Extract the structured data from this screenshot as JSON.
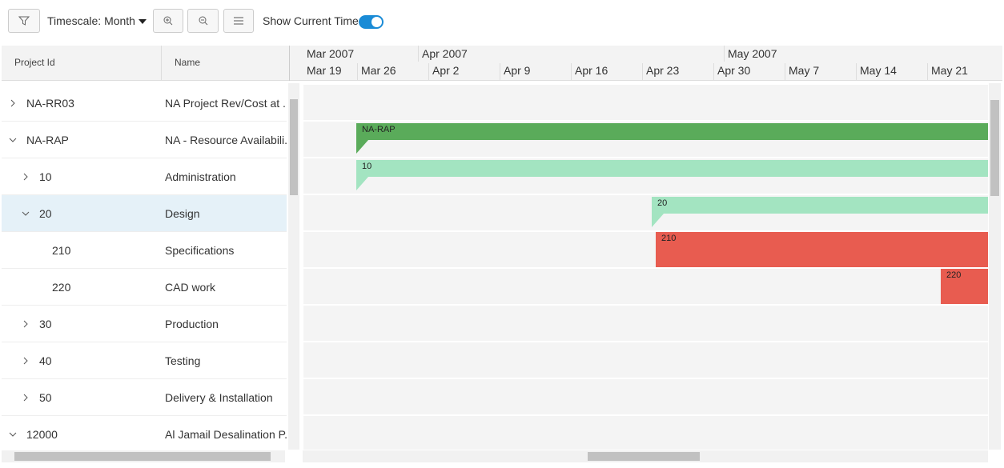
{
  "toolbar": {
    "timescale_label": "Timescale:",
    "timescale_value": "Month",
    "show_current_time": "Show Current Time"
  },
  "grid": {
    "headers": [
      "Project Id",
      "Name"
    ],
    "rows": [
      {
        "id": "NA-RR03",
        "name": "NA Project Rev/Cost at ..."
      },
      {
        "id": "NA-RAP",
        "name": "NA - Resource Availabili..."
      },
      {
        "id": "10",
        "name": "Administration"
      },
      {
        "id": "20",
        "name": "Design"
      },
      {
        "id": "210",
        "name": "Specifications"
      },
      {
        "id": "220",
        "name": "CAD work"
      },
      {
        "id": "30",
        "name": "Production"
      },
      {
        "id": "40",
        "name": "Testing"
      },
      {
        "id": "50",
        "name": "Delivery & Installation"
      },
      {
        "id": "12000",
        "name": "Al Jamail Desalination P..."
      }
    ]
  },
  "timeline": {
    "months": [
      "Mar 2007",
      "Apr 2007",
      "May 2007"
    ],
    "weeks": [
      "Mar 19",
      "Mar 26",
      "Apr 2",
      "Apr 9",
      "Apr 16",
      "Apr 23",
      "Apr 30",
      "May 7",
      "May 14",
      "May 21"
    ]
  },
  "bars": [
    "NA-RAP",
    "10",
    "20",
    "210",
    "220"
  ]
}
